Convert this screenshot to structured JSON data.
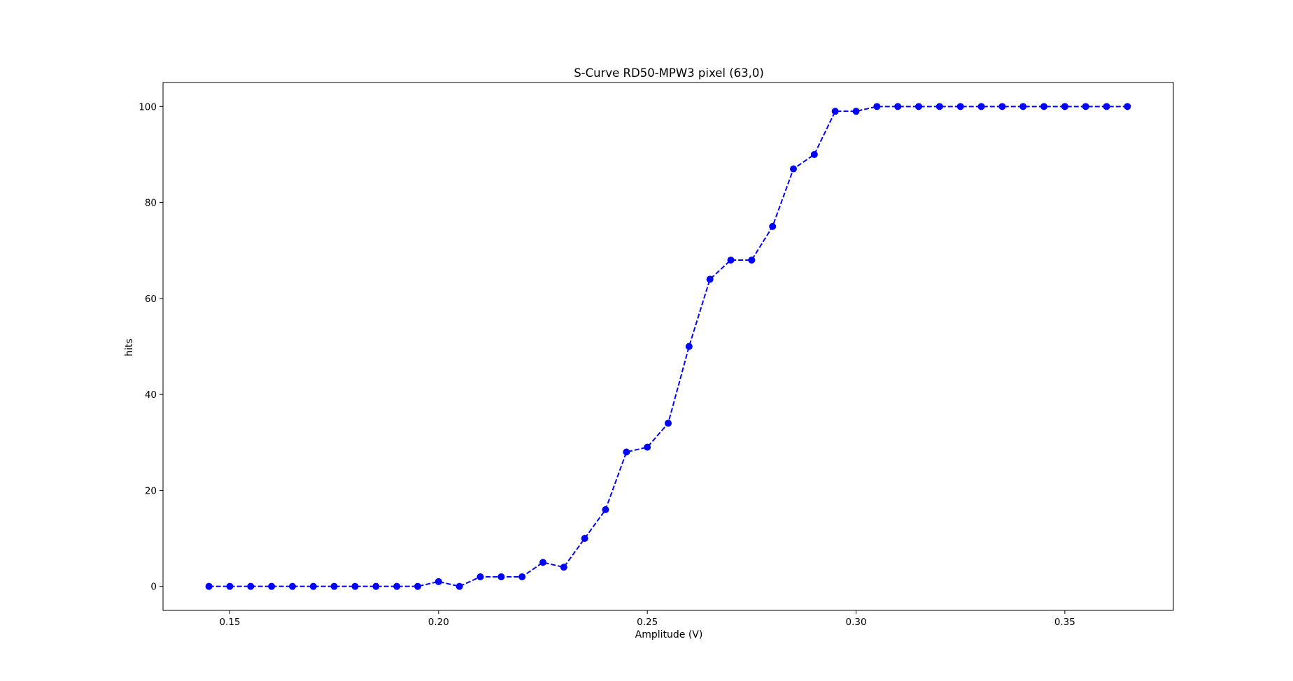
{
  "chart_data": {
    "type": "line",
    "title": "S-Curve RD50-MPW3 pixel (63,0)",
    "xlabel": "Amplitude (V)",
    "ylabel": "hits",
    "xlim": [
      0.134,
      0.376
    ],
    "ylim": [
      -5,
      105
    ],
    "xticks": [
      0.15,
      0.2,
      0.25,
      0.3,
      0.35
    ],
    "xtick_labels": [
      "0.15",
      "0.20",
      "0.25",
      "0.30",
      "0.35"
    ],
    "yticks": [
      0,
      20,
      40,
      60,
      80,
      100
    ],
    "ytick_labels": [
      "0",
      "20",
      "40",
      "60",
      "80",
      "100"
    ],
    "grid": false,
    "legend": false,
    "series": [
      {
        "color": "#0000ff",
        "linestyle": "dashed",
        "marker": "circle",
        "x": [
          0.145,
          0.15,
          0.155,
          0.16,
          0.165,
          0.17,
          0.175,
          0.18,
          0.185,
          0.19,
          0.195,
          0.2,
          0.205,
          0.21,
          0.215,
          0.22,
          0.225,
          0.23,
          0.235,
          0.24,
          0.245,
          0.25,
          0.255,
          0.26,
          0.265,
          0.27,
          0.275,
          0.28,
          0.285,
          0.29,
          0.295,
          0.3,
          0.305,
          0.31,
          0.315,
          0.32,
          0.325,
          0.33,
          0.335,
          0.34,
          0.345,
          0.35,
          0.355,
          0.36,
          0.365
        ],
        "y": [
          0,
          0,
          0,
          0,
          0,
          0,
          0,
          0,
          0,
          0,
          0,
          1,
          0,
          2,
          2,
          2,
          5,
          4,
          10,
          16,
          28,
          29,
          34,
          50,
          64,
          68,
          68,
          75,
          87,
          90,
          99,
          99,
          100,
          100,
          100,
          100,
          100,
          100,
          100,
          100,
          100,
          100,
          100,
          100,
          100
        ]
      }
    ]
  }
}
